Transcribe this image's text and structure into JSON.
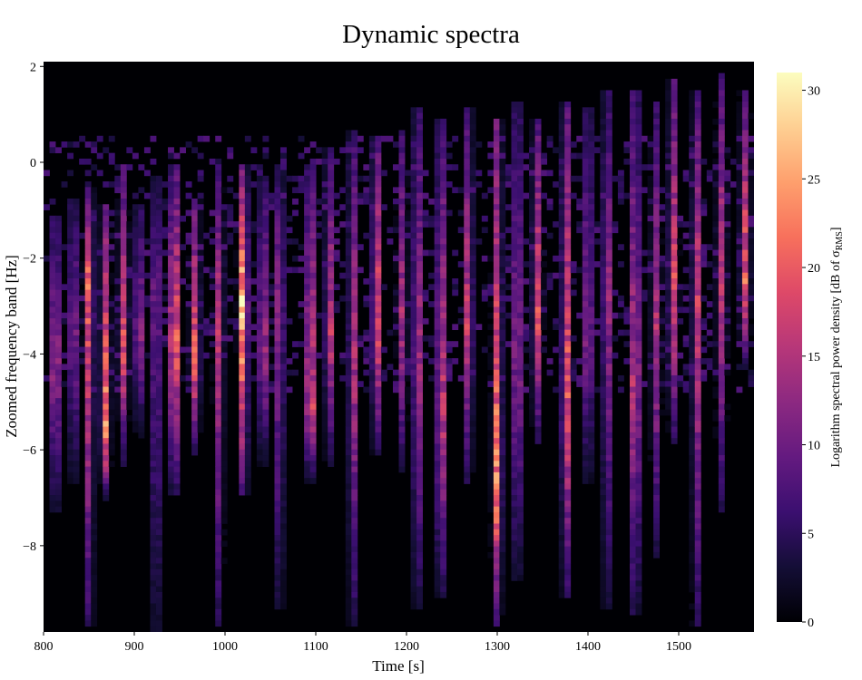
{
  "chart_data": {
    "type": "heatmap",
    "title": "Dynamic spectra",
    "xlabel": "Time [s]",
    "ylabel": "Zoomed frequency band [Hz]",
    "xlim": [
      800,
      1583
    ],
    "ylim": [
      -9.8,
      2.1
    ],
    "x_ticks": [
      800,
      900,
      1000,
      1100,
      1200,
      1300,
      1400,
      1500
    ],
    "x_tick_labels": [
      "800",
      "900",
      "1000",
      "1100",
      "1200",
      "1300",
      "1400",
      "1500"
    ],
    "y_ticks": [
      2,
      0,
      -2,
      -4,
      -6,
      -8
    ],
    "y_tick_labels": [
      "2",
      "0",
      "−2",
      "−4",
      "−6",
      "−8"
    ],
    "colorscale": "magma",
    "colorbar": {
      "title_prefix": "Logarithm spectral power density [dB of σ",
      "title_sub": "RMS",
      "title_suffix": "]",
      "range": [
        0,
        31
      ],
      "ticks": [
        0,
        5,
        10,
        15,
        20,
        25,
        30
      ],
      "tick_labels": [
        "0",
        "5",
        "10",
        "15",
        "20",
        "25",
        "30"
      ]
    },
    "features": [
      {
        "t": 813,
        "f_top": -1.4,
        "f_bot": -7.0,
        "core": -4.2,
        "peak": 20
      },
      {
        "t": 833,
        "f_top": -1.0,
        "f_bot": -6.4,
        "core": -3.6,
        "peak": 16
      },
      {
        "t": 850,
        "f_top": -0.8,
        "f_bot": -9.4,
        "core": -2.4,
        "peak": 22
      },
      {
        "t": 868,
        "f_top": -1.2,
        "f_bot": -6.8,
        "core": -5.6,
        "peak": 24
      },
      {
        "t": 888,
        "f_top": -0.4,
        "f_bot": -6.0,
        "core": -4.0,
        "peak": 19
      },
      {
        "t": 905,
        "f_top": -1.2,
        "f_bot": -5.4,
        "core": -3.6,
        "peak": 17
      },
      {
        "t": 924,
        "f_top": -0.6,
        "f_bot": -9.6,
        "core": -2.6,
        "peak": 15
      },
      {
        "t": 944,
        "f_top": -0.4,
        "f_bot": -6.6,
        "core": -3.8,
        "peak": 29
      },
      {
        "t": 967,
        "f_top": -1.0,
        "f_bot": -5.8,
        "core": -4.2,
        "peak": 21
      },
      {
        "t": 993,
        "f_top": -0.4,
        "f_bot": -9.4,
        "core": -3.2,
        "peak": 16
      },
      {
        "t": 1020,
        "f_top": -0.4,
        "f_bot": -6.6,
        "core": -3.0,
        "peak": 31
      },
      {
        "t": 1042,
        "f_top": -0.6,
        "f_bot": -6.0,
        "core": -4.0,
        "peak": 19
      },
      {
        "t": 1060,
        "f_top": -0.3,
        "f_bot": -9.0,
        "core": -2.8,
        "peak": 16
      },
      {
        "t": 1094,
        "f_top": -0.4,
        "f_bot": -6.4,
        "core": -5.2,
        "peak": 26
      },
      {
        "t": 1115,
        "f_top": 0.0,
        "f_bot": -6.0,
        "core": -3.6,
        "peak": 18
      },
      {
        "t": 1141,
        "f_top": 0.4,
        "f_bot": -9.4,
        "core": -4.0,
        "peak": 17
      },
      {
        "t": 1167,
        "f_top": 0.2,
        "f_bot": -5.8,
        "core": -3.4,
        "peak": 23
      },
      {
        "t": 1195,
        "f_top": 0.4,
        "f_bot": -6.2,
        "core": -3.2,
        "peak": 15
      },
      {
        "t": 1212,
        "f_top": 0.8,
        "f_bot": -9.0,
        "core": -3.8,
        "peak": 18
      },
      {
        "t": 1238,
        "f_top": 0.6,
        "f_bot": -8.8,
        "core": -5.0,
        "peak": 22
      },
      {
        "t": 1268,
        "f_top": 0.8,
        "f_bot": -6.4,
        "core": -3.4,
        "peak": 19
      },
      {
        "t": 1300,
        "f_top": 0.6,
        "f_bot": -9.4,
        "core": -6.8,
        "peak": 24
      },
      {
        "t": 1322,
        "f_top": 1.0,
        "f_bot": -8.4,
        "core": -4.2,
        "peak": 18
      },
      {
        "t": 1344,
        "f_top": 0.6,
        "f_bot": -5.6,
        "core": -3.2,
        "peak": 20
      },
      {
        "t": 1376,
        "f_top": 1.0,
        "f_bot": -8.8,
        "core": -4.6,
        "peak": 22
      },
      {
        "t": 1400,
        "f_top": 0.8,
        "f_bot": -6.4,
        "core": -3.6,
        "peak": 17
      },
      {
        "t": 1421,
        "f_top": 1.2,
        "f_bot": -9.0,
        "core": -2.8,
        "peak": 16
      },
      {
        "t": 1452,
        "f_top": 1.2,
        "f_bot": -9.2,
        "core": -4.6,
        "peak": 22
      },
      {
        "t": 1475,
        "f_top": 1.0,
        "f_bot": -8.0,
        "core": -3.4,
        "peak": 15
      },
      {
        "t": 1494,
        "f_top": 1.4,
        "f_bot": -5.6,
        "core": -2.6,
        "peak": 20
      },
      {
        "t": 1520,
        "f_top": 1.2,
        "f_bot": -9.4,
        "core": -2.6,
        "peak": 18
      },
      {
        "t": 1547,
        "f_top": 1.6,
        "f_bot": -7.0,
        "core": -2.2,
        "peak": 16
      },
      {
        "t": 1573,
        "f_top": 1.2,
        "f_bot": -4.0,
        "core": -2.6,
        "peak": 21
      }
    ]
  }
}
